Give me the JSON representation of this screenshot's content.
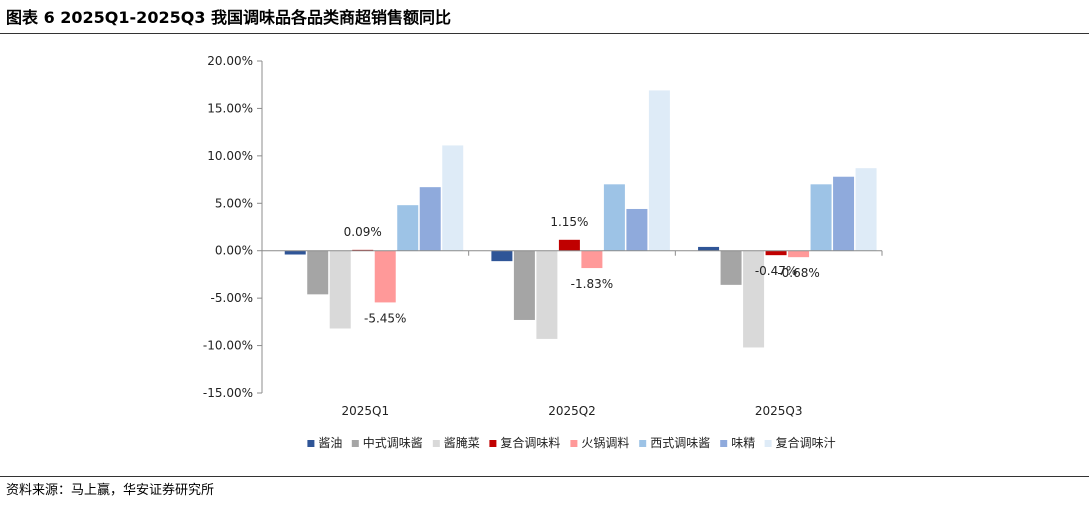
{
  "figure": {
    "title": "图表 6 2025Q1-2025Q3 我国调味品各品类商超销售额同比",
    "source": "资料来源：马上赢，华安证券研究所"
  },
  "chart_data": {
    "type": "bar",
    "title": "",
    "xlabel": "",
    "ylabel": "",
    "categories": [
      "2025Q1",
      "2025Q2",
      "2025Q3"
    ],
    "ylim": [
      -15,
      20
    ],
    "yticks": [
      -15,
      -10,
      -5,
      0,
      5,
      10,
      15,
      20
    ],
    "ytick_labels": [
      "-15.00%",
      "-10.00%",
      "-5.00%",
      "0.00%",
      "5.00%",
      "10.00%",
      "15.00%",
      "20.00%"
    ],
    "grid": false,
    "legend_position": "bottom",
    "series": [
      {
        "name": "酱油",
        "color": "#2f5597",
        "values": [
          -0.4,
          -1.1,
          0.4
        ]
      },
      {
        "name": "中式调味酱",
        "color": "#a5a5a5",
        "values": [
          -4.6,
          -7.3,
          -3.6
        ]
      },
      {
        "name": "酱腌菜",
        "color": "#d9d9d9",
        "values": [
          -8.2,
          -9.3,
          -10.2
        ]
      },
      {
        "name": "复合调味料",
        "color": "#c00000",
        "values": [
          0.09,
          1.15,
          -0.47
        ]
      },
      {
        "name": "火锅调料",
        "color": "#ff9999",
        "values": [
          -5.45,
          -1.83,
          -0.68
        ]
      },
      {
        "name": "西式调味酱",
        "color": "#9dc3e6",
        "values": [
          4.8,
          7.0,
          7.0
        ]
      },
      {
        "name": "味精",
        "color": "#8faadc",
        "values": [
          6.7,
          4.4,
          7.8
        ]
      },
      {
        "name": "复合调味汁",
        "color": "#deebf7",
        "values": [
          11.1,
          16.9,
          8.7
        ]
      }
    ],
    "data_labels": [
      {
        "series": 3,
        "category": 0,
        "text": "0.09%"
      },
      {
        "series": 4,
        "category": 0,
        "text": "-5.45%"
      },
      {
        "series": 3,
        "category": 1,
        "text": "1.15%"
      },
      {
        "series": 4,
        "category": 1,
        "text": "-1.83%"
      },
      {
        "series": 3,
        "category": 2,
        "text": "-0.47%"
      },
      {
        "series": 4,
        "category": 2,
        "text": "-0.68%"
      }
    ]
  }
}
